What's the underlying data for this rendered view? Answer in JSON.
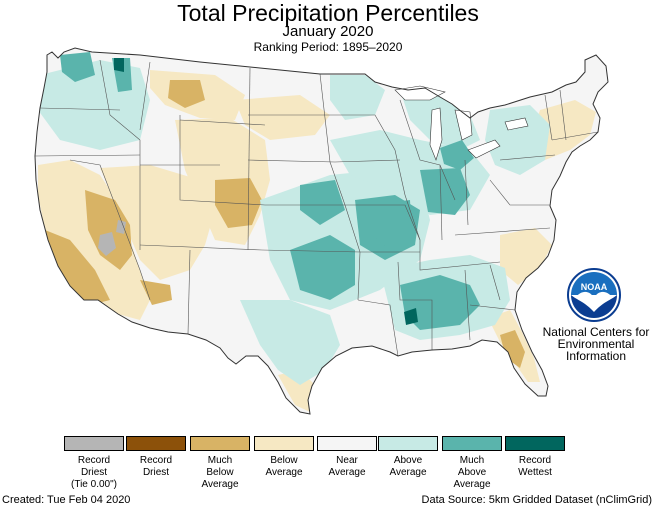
{
  "header": {
    "title": "Total Precipitation Percentiles",
    "subtitle": "January 2020",
    "ranking_period": "Ranking Period: 1895–2020"
  },
  "colors": {
    "record_driest": "#b5b5b5",
    "record_dry": "#8c510a",
    "much_below": "#d8b365",
    "below": "#f6e8c3",
    "near": "#f5f5f5",
    "above": "#c7eae5",
    "much_above": "#5ab4ac",
    "record_wettest": "#01665e",
    "boundary": "#555555",
    "outline": "#333333",
    "noaa_blue": "#1a6fbf",
    "noaa_dark": "#0b3d91"
  },
  "legend": {
    "items": [
      {
        "key": "record_driest",
        "label": "Record\nDriest\n(Tie 0.00\")"
      },
      {
        "key": "record_dry",
        "label": "Record\nDriest"
      },
      {
        "key": "much_below",
        "label": "Much\nBelow\nAverage"
      },
      {
        "key": "below",
        "label": "Below\nAverage"
      },
      {
        "key": "near",
        "label": "Near\nAverage"
      },
      {
        "key": "above",
        "label": "Above\nAverage"
      },
      {
        "key": "much_above",
        "label": "Much\nAbove\nAverage"
      },
      {
        "key": "record_wettest",
        "label": "Record\nWettest"
      }
    ]
  },
  "noaa": {
    "logo_text": "NOAA",
    "name_line1": "National Centers for",
    "name_line2": "Environmental",
    "name_line3": "Information"
  },
  "footer": {
    "created": "Created: Tue Feb 04 2020",
    "source": "Data Source: 5km Gridded Dataset (nClimGrid)"
  }
}
